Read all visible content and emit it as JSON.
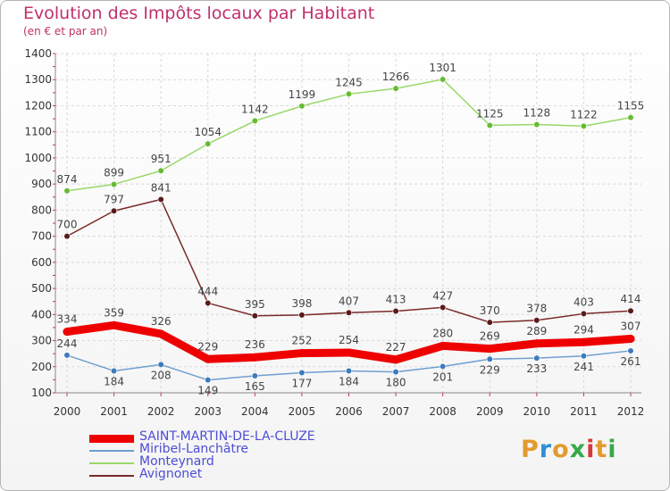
{
  "chart_data": {
    "type": "line",
    "title": "Evolution des Impôts locaux par Habitant",
    "subtitle": "(en € et par an)",
    "xlabel": "",
    "ylabel": "",
    "ylim": [
      100,
      1400
    ],
    "yticks": [
      "100",
      "200",
      "300",
      "400",
      "500",
      "600",
      "700",
      "800",
      "900",
      "1000",
      "1100",
      "1200",
      "1300",
      "1400"
    ],
    "categories": [
      "2000",
      "2001",
      "2002",
      "2003",
      "2004",
      "2005",
      "2006",
      "2007",
      "2008",
      "2009",
      "2010",
      "2011",
      "2012"
    ],
    "series": [
      {
        "name": "Monteynard",
        "color": "#99d868",
        "marker": "#66bb33",
        "values": [
          874,
          899,
          951,
          1054,
          1142,
          1199,
          1245,
          1266,
          1301,
          1125,
          1128,
          1122,
          1155
        ],
        "labels": [
          "874",
          "899",
          "951",
          "1054",
          "1142",
          "1199",
          "1245",
          "1266",
          "1301",
          "1125",
          "1128",
          "1122",
          "1155"
        ]
      },
      {
        "name": "Avignonet",
        "color": "#7a2a2a",
        "marker": "#5a1a1a",
        "values": [
          700,
          797,
          841,
          444,
          395,
          398,
          407,
          413,
          427,
          370,
          378,
          403,
          414
        ],
        "labels": [
          "700",
          "797",
          "841",
          "444",
          "395",
          "398",
          "407",
          "413",
          "427",
          "370",
          "378",
          "403",
          "414"
        ]
      },
      {
        "name": "Miribel-Lanchâtre",
        "color": "#6f9fd0",
        "marker": "#3d7bbd",
        "values": [
          244,
          184,
          208,
          149,
          165,
          177,
          184,
          180,
          201,
          229,
          233,
          241,
          261
        ],
        "labels": [
          "244",
          "184",
          "208",
          "149",
          "165",
          "177",
          "184",
          "180",
          "201",
          "229",
          "233",
          "241",
          "261"
        ]
      },
      {
        "name": "SAINT-MARTIN-DE-LA-CLUZE",
        "color": "#ee0000",
        "marker": "#ee0000",
        "values": [
          334,
          359,
          326,
          229,
          236,
          252,
          254,
          227,
          280,
          269,
          289,
          294,
          307
        ],
        "labels": [
          "334",
          "359",
          "326",
          "229",
          "236",
          "252",
          "254",
          "227",
          "280",
          "269",
          "289",
          "294",
          "307"
        ]
      }
    ],
    "legend": [
      "SAINT-MARTIN-DE-LA-CLUZE",
      "Miribel-Lanchâtre",
      "Monteynard",
      "Avignonet"
    ],
    "legend_position": "bottom-left",
    "grid": true
  },
  "logo": {
    "text": "Proxiti"
  }
}
